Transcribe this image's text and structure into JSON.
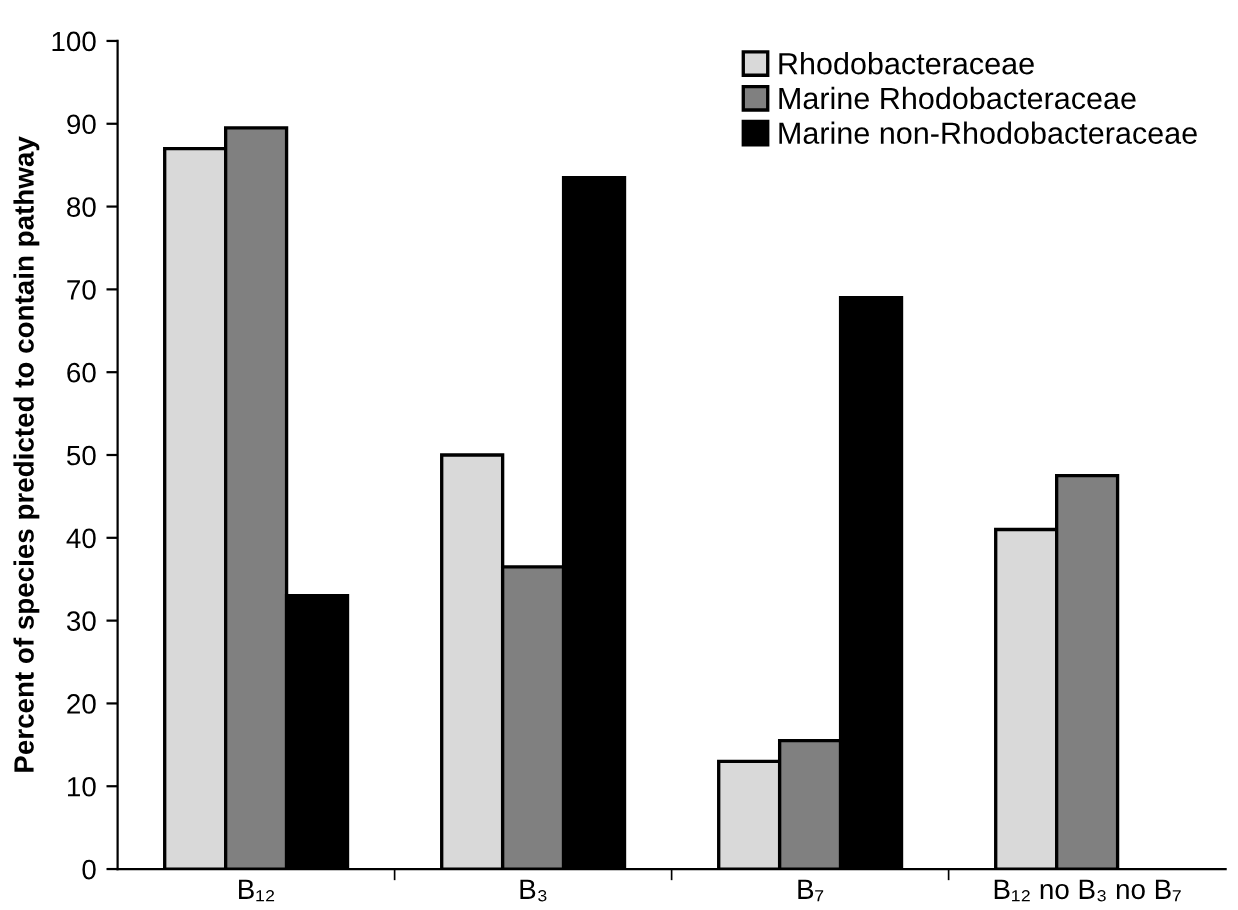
{
  "chart_data": {
    "type": "bar",
    "ylabel": "Percent of species predicted to contain pathway",
    "categories": [
      "B₁₂",
      "B₃",
      "B₇",
      "B₁₂ no B₃ no B₇"
    ],
    "series": [
      {
        "name": "Rhodobacteraceae",
        "color": "#d9d9d9",
        "values": [
          87,
          50,
          13,
          41
        ]
      },
      {
        "name": "Marine Rhodobacteraceae",
        "color": "#808080",
        "values": [
          89.5,
          36.5,
          15.5,
          47.5
        ]
      },
      {
        "name": "Marine non-Rhodobacteraceae",
        "color": "#000000",
        "values": [
          33,
          83.5,
          69,
          null
        ]
      }
    ],
    "ylim": [
      0,
      100
    ],
    "yticks": [
      0,
      10,
      20,
      30,
      40,
      50,
      60,
      70,
      80,
      90,
      100
    ],
    "grid": false,
    "legend": "top right"
  }
}
